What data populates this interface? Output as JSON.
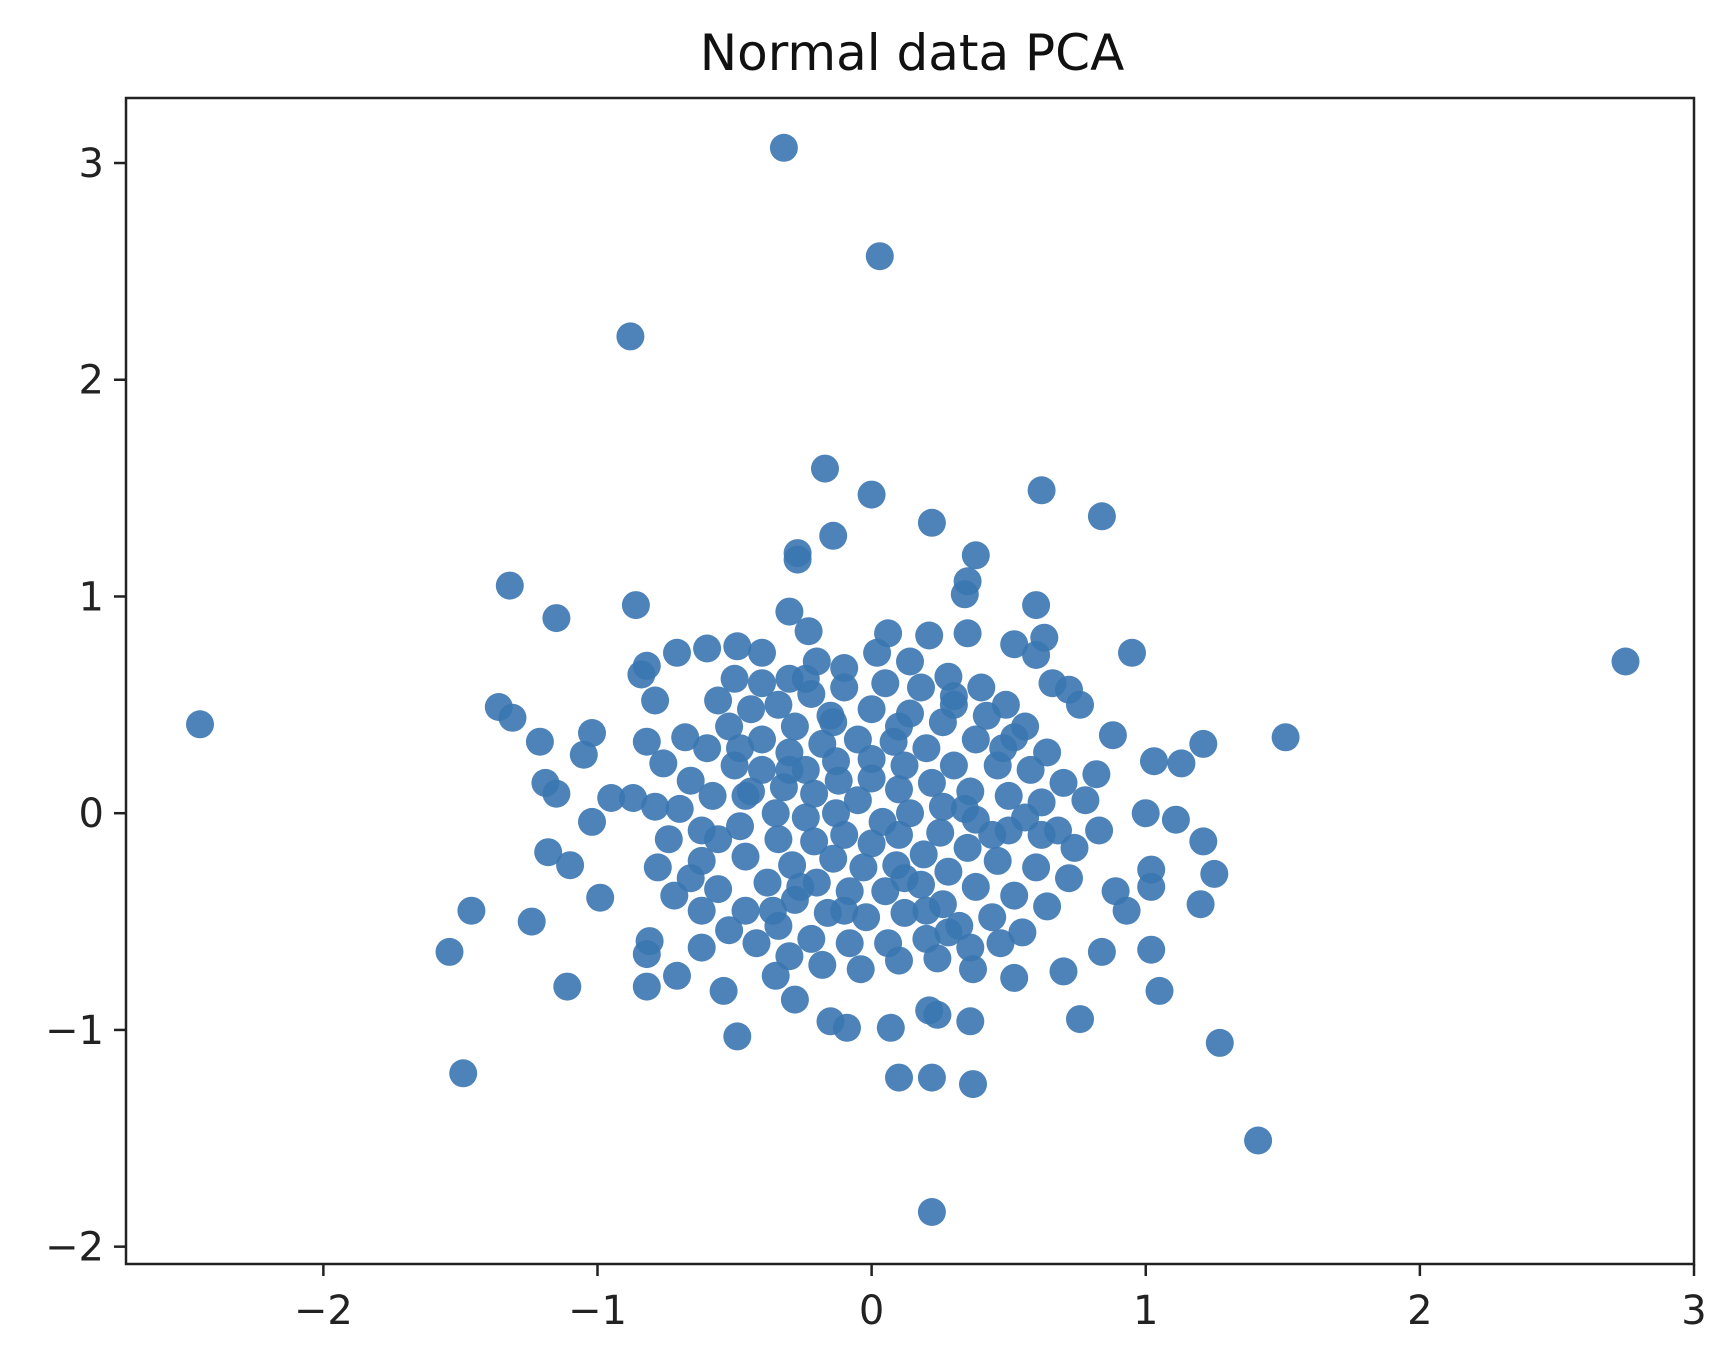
{
  "chart_data": {
    "type": "scatter",
    "title": "Normal data PCA",
    "xlabel": "",
    "ylabel": "",
    "xlim": [
      -2.72,
      3.0
    ],
    "ylim": [
      -2.08,
      3.3
    ],
    "xticks": [
      -2,
      -1,
      0,
      1,
      2,
      3
    ],
    "yticks": [
      -2,
      -1,
      0,
      1,
      2,
      3
    ],
    "xtick_labels": [
      "−2",
      "−1",
      "0",
      "1",
      "2",
      "3"
    ],
    "ytick_labels": [
      "−2",
      "−1",
      "0",
      "1",
      "2",
      "3"
    ],
    "grid": false,
    "legend": "none",
    "marker_color": "#3a75b0",
    "series": [
      {
        "points": [
          [
            -0.32,
            3.07
          ],
          [
            0.03,
            2.57
          ],
          [
            -0.88,
            2.2
          ],
          [
            -0.17,
            1.59
          ],
          [
            0.0,
            1.47
          ],
          [
            0.62,
            1.49
          ],
          [
            0.84,
            1.37
          ],
          [
            0.22,
            1.34
          ],
          [
            -0.14,
            1.28
          ],
          [
            -0.27,
            1.2
          ],
          [
            -0.27,
            1.17
          ],
          [
            0.38,
            1.19
          ],
          [
            0.35,
            1.07
          ],
          [
            0.34,
            1.01
          ],
          [
            -1.32,
            1.05
          ],
          [
            -1.15,
            0.9
          ],
          [
            -0.86,
            0.96
          ],
          [
            -0.3,
            0.93
          ],
          [
            0.6,
            0.96
          ],
          [
            -0.23,
            0.84
          ],
          [
            0.06,
            0.83
          ],
          [
            0.21,
            0.82
          ],
          [
            0.35,
            0.83
          ],
          [
            0.63,
            0.81
          ],
          [
            0.95,
            0.74
          ],
          [
            2.75,
            0.7
          ],
          [
            -2.45,
            0.41
          ],
          [
            -1.36,
            0.49
          ],
          [
            -1.31,
            0.44
          ],
          [
            -1.21,
            0.33
          ],
          [
            -1.02,
            0.37
          ],
          [
            -1.05,
            0.27
          ],
          [
            -0.82,
            0.68
          ],
          [
            -0.84,
            0.64
          ],
          [
            -0.79,
            0.52
          ],
          [
            -0.82,
            0.33
          ],
          [
            -0.71,
            0.74
          ],
          [
            -0.6,
            0.76
          ],
          [
            -0.49,
            0.77
          ],
          [
            -0.4,
            0.74
          ],
          [
            0.52,
            0.78
          ],
          [
            0.6,
            0.73
          ],
          [
            0.66,
            0.6
          ],
          [
            0.72,
            0.57
          ],
          [
            0.76,
            0.5
          ],
          [
            0.88,
            0.36
          ],
          [
            1.03,
            0.24
          ],
          [
            1.13,
            0.23
          ],
          [
            1.21,
            0.32
          ],
          [
            1.51,
            0.35
          ],
          [
            1.0,
            0.0
          ],
          [
            1.11,
            -0.03
          ],
          [
            1.21,
            -0.13
          ],
          [
            1.25,
            -0.28
          ],
          [
            1.02,
            -0.26
          ],
          [
            1.02,
            -0.34
          ],
          [
            1.2,
            -0.42
          ],
          [
            0.93,
            -0.45
          ],
          [
            0.89,
            -0.36
          ],
          [
            1.02,
            -0.63
          ],
          [
            1.05,
            -0.82
          ],
          [
            1.27,
            -1.06
          ],
          [
            1.41,
            -1.51
          ],
          [
            0.76,
            -0.95
          ],
          [
            0.84,
            -0.64
          ],
          [
            0.7,
            -0.73
          ],
          [
            0.52,
            -0.76
          ],
          [
            0.37,
            -0.72
          ],
          [
            0.36,
            -0.96
          ],
          [
            0.37,
            -1.25
          ],
          [
            0.22,
            -1.22
          ],
          [
            0.1,
            -1.22
          ],
          [
            0.21,
            -0.91
          ],
          [
            0.24,
            -0.93
          ],
          [
            0.07,
            -0.99
          ],
          [
            -0.09,
            -0.99
          ],
          [
            -0.15,
            -0.96
          ],
          [
            0.22,
            -1.84
          ],
          [
            -0.49,
            -1.03
          ],
          [
            -0.54,
            -0.82
          ],
          [
            -0.35,
            -0.75
          ],
          [
            -0.28,
            -0.86
          ],
          [
            -0.71,
            -0.75
          ],
          [
            -0.82,
            -0.8
          ],
          [
            -0.82,
            -0.65
          ],
          [
            -0.62,
            -0.62
          ],
          [
            -0.81,
            -0.59
          ],
          [
            -1.11,
            -0.8
          ],
          [
            -1.24,
            -0.5
          ],
          [
            -1.46,
            -0.45
          ],
          [
            -1.54,
            -0.64
          ],
          [
            -1.49,
            -1.2
          ],
          [
            -1.18,
            -0.18
          ],
          [
            -1.1,
            -0.24
          ],
          [
            -0.99,
            -0.39
          ],
          [
            -1.02,
            -0.04
          ],
          [
            -0.95,
            0.07
          ],
          [
            -0.87,
            0.07
          ],
          [
            -0.79,
            0.03
          ],
          [
            -1.19,
            0.14
          ],
          [
            -1.15,
            0.09
          ],
          [
            -0.76,
            0.23
          ],
          [
            -0.68,
            0.35
          ],
          [
            -0.56,
            0.52
          ],
          [
            -0.5,
            0.62
          ],
          [
            -0.4,
            0.6
          ],
          [
            -0.3,
            0.62
          ],
          [
            -0.2,
            0.7
          ],
          [
            -0.1,
            0.67
          ],
          [
            0.02,
            0.74
          ],
          [
            0.14,
            0.7
          ],
          [
            0.28,
            0.63
          ],
          [
            0.4,
            0.58
          ],
          [
            0.49,
            0.5
          ],
          [
            0.56,
            0.4
          ],
          [
            0.64,
            0.28
          ],
          [
            0.7,
            0.14
          ],
          [
            0.82,
            0.18
          ],
          [
            0.78,
            0.06
          ],
          [
            0.83,
            -0.08
          ],
          [
            0.74,
            -0.16
          ],
          [
            0.72,
            -0.3
          ],
          [
            0.64,
            -0.43
          ],
          [
            0.55,
            -0.55
          ],
          [
            0.47,
            -0.6
          ],
          [
            0.36,
            -0.62
          ],
          [
            0.24,
            -0.67
          ],
          [
            0.1,
            -0.68
          ],
          [
            -0.04,
            -0.72
          ],
          [
            -0.18,
            -0.7
          ],
          [
            -0.3,
            -0.66
          ],
          [
            -0.42,
            -0.6
          ],
          [
            -0.52,
            -0.54
          ],
          [
            -0.62,
            -0.45
          ],
          [
            -0.72,
            -0.38
          ],
          [
            -0.78,
            -0.25
          ],
          [
            -0.74,
            -0.12
          ],
          [
            -0.7,
            0.02
          ],
          [
            -0.66,
            0.15
          ],
          [
            -0.6,
            0.3
          ],
          [
            -0.52,
            0.4
          ],
          [
            -0.44,
            0.48
          ],
          [
            -0.34,
            0.5
          ],
          [
            -0.22,
            0.55
          ],
          [
            -0.1,
            0.58
          ],
          [
            0.05,
            0.6
          ],
          [
            0.18,
            0.58
          ],
          [
            0.3,
            0.54
          ],
          [
            0.42,
            0.45
          ],
          [
            0.52,
            0.35
          ],
          [
            0.58,
            0.2
          ],
          [
            0.62,
            0.05
          ],
          [
            0.62,
            -0.1
          ],
          [
            0.6,
            -0.25
          ],
          [
            0.52,
            -0.38
          ],
          [
            0.44,
            -0.48
          ],
          [
            0.32,
            -0.52
          ],
          [
            0.2,
            -0.58
          ],
          [
            0.06,
            -0.6
          ],
          [
            -0.08,
            -0.6
          ],
          [
            -0.22,
            -0.58
          ],
          [
            -0.34,
            -0.52
          ],
          [
            -0.46,
            -0.45
          ],
          [
            -0.56,
            -0.35
          ],
          [
            -0.62,
            -0.22
          ],
          [
            -0.62,
            -0.08
          ],
          [
            -0.58,
            0.08
          ],
          [
            -0.5,
            0.22
          ],
          [
            -0.4,
            0.34
          ],
          [
            -0.28,
            0.4
          ],
          [
            -0.15,
            0.45
          ],
          [
            0.0,
            0.48
          ],
          [
            0.14,
            0.46
          ],
          [
            0.26,
            0.42
          ],
          [
            0.38,
            0.34
          ],
          [
            0.46,
            0.22
          ],
          [
            0.5,
            0.08
          ],
          [
            0.5,
            -0.08
          ],
          [
            0.46,
            -0.22
          ],
          [
            0.38,
            -0.34
          ],
          [
            0.26,
            -0.42
          ],
          [
            0.12,
            -0.46
          ],
          [
            -0.02,
            -0.48
          ],
          [
            -0.16,
            -0.46
          ],
          [
            -0.28,
            -0.4
          ],
          [
            -0.38,
            -0.32
          ],
          [
            -0.46,
            -0.2
          ],
          [
            -0.48,
            -0.06
          ],
          [
            -0.46,
            0.08
          ],
          [
            -0.4,
            0.2
          ],
          [
            -0.3,
            0.28
          ],
          [
            -0.18,
            0.32
          ],
          [
            -0.05,
            0.34
          ],
          [
            0.08,
            0.33
          ],
          [
            0.2,
            0.3
          ],
          [
            0.3,
            0.22
          ],
          [
            0.36,
            0.1
          ],
          [
            0.38,
            -0.03
          ],
          [
            0.35,
            -0.16
          ],
          [
            0.28,
            -0.27
          ],
          [
            0.18,
            -0.33
          ],
          [
            0.05,
            -0.36
          ],
          [
            -0.08,
            -0.36
          ],
          [
            -0.2,
            -0.32
          ],
          [
            -0.29,
            -0.24
          ],
          [
            -0.34,
            -0.12
          ],
          [
            -0.35,
            0.0
          ],
          [
            -0.32,
            0.12
          ],
          [
            -0.24,
            0.2
          ],
          [
            -0.13,
            0.24
          ],
          [
            0.0,
            0.25
          ],
          [
            0.12,
            0.22
          ],
          [
            0.22,
            0.14
          ],
          [
            0.26,
            0.03
          ],
          [
            0.25,
            -0.09
          ],
          [
            0.19,
            -0.19
          ],
          [
            0.09,
            -0.24
          ],
          [
            -0.03,
            -0.25
          ],
          [
            -0.14,
            -0.21
          ],
          [
            -0.21,
            -0.13
          ],
          [
            -0.24,
            -0.02
          ],
          [
            -0.21,
            0.09
          ],
          [
            -0.12,
            0.15
          ],
          [
            0.0,
            0.16
          ],
          [
            0.1,
            0.11
          ],
          [
            0.14,
            0.0
          ],
          [
            0.1,
            -0.1
          ],
          [
            0.0,
            -0.14
          ],
          [
            -0.1,
            -0.1
          ],
          [
            -0.13,
            0.0
          ],
          [
            -0.05,
            0.06
          ],
          [
            0.04,
            -0.04
          ],
          [
            -0.26,
            -0.34
          ],
          [
            0.3,
            0.5
          ],
          [
            0.44,
            -0.1
          ],
          [
            -0.44,
            0.1
          ],
          [
            0.1,
            0.4
          ],
          [
            -0.1,
            -0.45
          ],
          [
            0.56,
            -0.02
          ],
          [
            -0.56,
            -0.12
          ],
          [
            0.2,
            -0.45
          ],
          [
            -0.3,
            0.2
          ],
          [
            0.34,
            0.02
          ],
          [
            -0.14,
            0.42
          ],
          [
            0.68,
            -0.08
          ],
          [
            -0.66,
            -0.3
          ],
          [
            0.12,
            -0.3
          ],
          [
            -0.36,
            -0.45
          ],
          [
            0.48,
            0.3
          ],
          [
            -0.48,
            0.3
          ],
          [
            0.28,
            -0.55
          ],
          [
            -0.24,
            0.62
          ]
        ]
      }
    ]
  }
}
